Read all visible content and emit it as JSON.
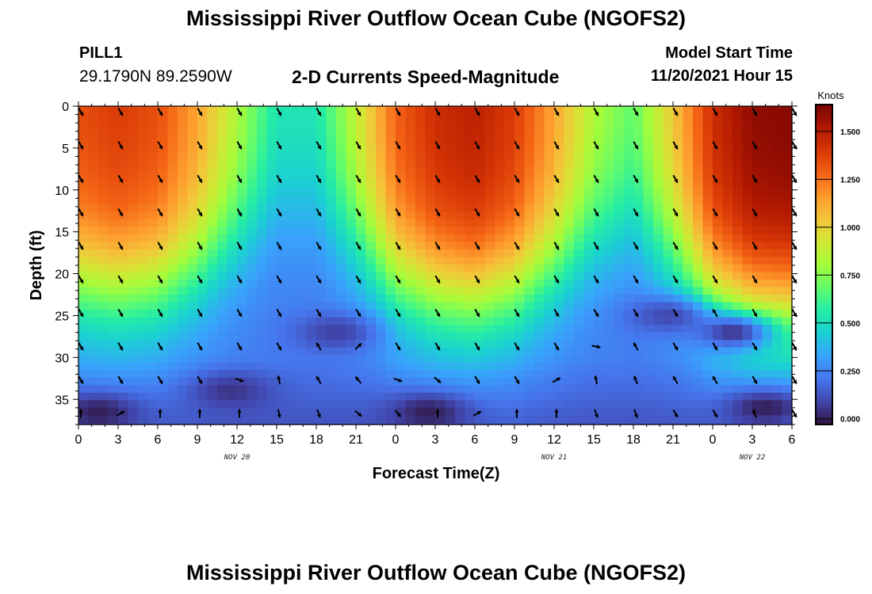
{
  "header": {
    "title": "Mississippi River Outflow Ocean Cube (NGOFS2)",
    "station": "PILL1",
    "coordinates": "29.1790N  89.2590W",
    "subtitle": "2-D Currents Speed-Magnitude",
    "model_start_label": "Model Start Time",
    "model_start_value": "11/20/2021 Hour 15"
  },
  "footer": {
    "title": "Mississippi River Outflow Ocean Cube (NGOFS2)"
  },
  "colors": {
    "vector": "#000000",
    "frame": "#000000",
    "colormap": [
      "#30123b",
      "#4145ab",
      "#4675ed",
      "#39a2fc",
      "#1bcfd4",
      "#24eca6",
      "#61fc6c",
      "#a4fc3b",
      "#d1e834",
      "#f3c63a",
      "#fe9b2d",
      "#f36315",
      "#d93806",
      "#b11901",
      "#7a0403"
    ]
  },
  "chart_data": {
    "type": "heatmap",
    "xlabel": "Forecast Time(Z)",
    "ylabel": "Depth (ft)",
    "colorbar_label": "Knots",
    "colorbar_ticks": [
      "1.500",
      "1.250",
      "1.000",
      "0.750",
      "0.500",
      "0.250",
      "0.000"
    ],
    "colorbar_values": [
      1.5,
      1.25,
      1.0,
      0.75,
      0.5,
      0.25,
      0.0
    ],
    "colorbar_range": [
      -0.03,
      1.64
    ],
    "x_range_hours": [
      0,
      54
    ],
    "x_tick_labels": [
      "0",
      "3",
      "6",
      "9",
      "12",
      "15",
      "18",
      "21",
      "0",
      "3",
      "6",
      "9",
      "12",
      "15",
      "18",
      "21",
      "0",
      "3",
      "6"
    ],
    "date_labels": [
      {
        "text": "NOV 20",
        "hour": 12
      },
      {
        "text": "NOV 21",
        "hour": 36
      },
      {
        "text": "NOV 22",
        "hour": 51
      }
    ],
    "y_range_ft": [
      0,
      38
    ],
    "y_tick_values": [
      0,
      5,
      10,
      15,
      20,
      25,
      30,
      35
    ],
    "y_tick_labels": [
      "0",
      "5",
      "10",
      "15",
      "20",
      "25",
      "30",
      "35"
    ],
    "surface_speed_knots": {
      "hours": [
        0,
        3,
        6,
        9,
        12,
        15,
        18,
        21,
        24,
        27,
        30,
        33,
        36,
        39,
        42,
        45,
        48,
        51,
        54
      ],
      "values": [
        1.35,
        1.4,
        1.35,
        1.15,
        0.85,
        0.55,
        0.55,
        0.9,
        1.3,
        1.45,
        1.5,
        1.4,
        1.15,
        0.85,
        0.7,
        1.05,
        1.45,
        1.6,
        1.62
      ]
    },
    "low_speed_cells": [
      {
        "hour": 19.5,
        "depth_ft": 27,
        "value": 0.08
      },
      {
        "hour": 44.5,
        "depth_ft": 25,
        "value": 0.1
      },
      {
        "hour": 49.5,
        "depth_ft": 27,
        "value": 0.05
      },
      {
        "hour": 11.5,
        "depth_ft": 34,
        "value": 0.05
      },
      {
        "hour": 1.5,
        "depth_ft": 36.5,
        "value": 0.0
      },
      {
        "hour": 26.5,
        "depth_ft": 36.5,
        "value": 0.0
      },
      {
        "hour": 52,
        "depth_ft": 36,
        "value": 0.0
      }
    ],
    "vector_rows_ft": [
      0.5,
      4.5,
      8.5,
      12.5,
      16.5,
      20.5,
      24.5,
      28.5,
      32.5,
      36.5
    ],
    "vector_directions_deg": [
      [
        150,
        150,
        150,
        150,
        150,
        150,
        150,
        150,
        150,
        150,
        150,
        150,
        150,
        150,
        150,
        150,
        150,
        150,
        150
      ],
      [
        150,
        150,
        150,
        150,
        150,
        150,
        150,
        150,
        150,
        150,
        150,
        150,
        150,
        150,
        150,
        150,
        150,
        150,
        150
      ],
      [
        150,
        150,
        150,
        150,
        150,
        150,
        150,
        150,
        150,
        150,
        150,
        150,
        150,
        150,
        150,
        150,
        150,
        150,
        150
      ],
      [
        150,
        150,
        150,
        150,
        150,
        150,
        150,
        150,
        150,
        150,
        150,
        150,
        150,
        150,
        150,
        150,
        150,
        150,
        150
      ],
      [
        150,
        150,
        150,
        150,
        150,
        150,
        150,
        150,
        150,
        150,
        150,
        150,
        150,
        150,
        150,
        150,
        150,
        150,
        150
      ],
      [
        150,
        150,
        150,
        150,
        150,
        150,
        150,
        150,
        150,
        150,
        150,
        150,
        150,
        150,
        150,
        150,
        150,
        150,
        150
      ],
      [
        150,
        150,
        150,
        150,
        150,
        150,
        150,
        150,
        150,
        150,
        150,
        150,
        150,
        150,
        150,
        150,
        -30,
        150,
        150
      ],
      [
        150,
        150,
        150,
        150,
        150,
        150,
        -30,
        45,
        150,
        150,
        150,
        150,
        150,
        100,
        -30,
        150,
        150,
        150,
        150
      ],
      [
        150,
        150,
        150,
        150,
        110,
        -10,
        -30,
        -40,
        110,
        130,
        150,
        150,
        60,
        -10,
        -20,
        -30,
        -30,
        150,
        150
      ],
      [
        0,
        60,
        0,
        0,
        0,
        170,
        160,
        130,
        140,
        0,
        60,
        0,
        0,
        160,
        160,
        150,
        150,
        -20,
        150
      ]
    ]
  }
}
